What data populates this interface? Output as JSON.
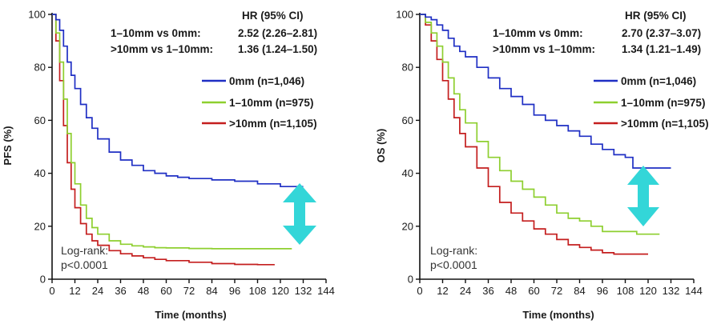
{
  "chart_data": [
    {
      "type": "line",
      "ylabel": "PFS (%)",
      "xlabel": "Time (months)",
      "xlim": [
        0,
        144
      ],
      "ylim": [
        0,
        100
      ],
      "x_ticks": [
        "0",
        "12",
        "24",
        "36",
        "48",
        "60",
        "72",
        "84",
        "96",
        "108",
        "120",
        "132",
        "144"
      ],
      "y_ticks": [
        "0",
        "20",
        "40",
        "60",
        "80",
        "100"
      ],
      "hr_header": "HR (95% CI)",
      "hr_rows": [
        {
          "label": "1–10mm vs 0mm:",
          "value": "2.52 (2.26–2.81)"
        },
        {
          "label": ">10mm vs 1–10mm:",
          "value": "1.36 (1.24–1.50)"
        }
      ],
      "annotation": [
        "Log-rank:",
        "p<0.0001"
      ],
      "series": [
        {
          "name": "0mm (n=1,046)",
          "color": "#1f2fc4",
          "x": [
            0,
            2,
            4,
            6,
            8,
            10,
            12,
            15,
            18,
            21,
            24,
            30,
            36,
            42,
            48,
            54,
            60,
            66,
            72,
            84,
            96,
            108,
            120,
            132
          ],
          "y": [
            100,
            98,
            94,
            88,
            82,
            77,
            72,
            66,
            61,
            57,
            53,
            48,
            45,
            43,
            41,
            40,
            39,
            38.5,
            38,
            37.5,
            37,
            36,
            35,
            35
          ]
        },
        {
          "name": "1–10mm (n=975)",
          "color": "#8ecf2f",
          "x": [
            0,
            2,
            4,
            6,
            8,
            10,
            12,
            15,
            18,
            21,
            24,
            30,
            36,
            42,
            48,
            54,
            60,
            72,
            84,
            96,
            108,
            120,
            126
          ],
          "y": [
            100,
            93,
            82,
            68,
            55,
            44,
            36,
            28,
            23,
            19.5,
            17,
            14.5,
            13.2,
            12.6,
            12.2,
            11.9,
            11.8,
            11.6,
            11.5,
            11.5,
            11.5,
            11.5,
            11.5
          ]
        },
        {
          "name": ">10mm (n=1,105)",
          "color": "#c41e1e",
          "x": [
            0,
            2,
            4,
            6,
            8,
            10,
            12,
            15,
            18,
            21,
            24,
            30,
            36,
            42,
            48,
            54,
            60,
            72,
            84,
            96,
            108,
            117
          ],
          "y": [
            100,
            90,
            75,
            58,
            44,
            34,
            27,
            21,
            17,
            14.5,
            12.8,
            10.8,
            9.6,
            8.8,
            8.1,
            7.5,
            7.0,
            6.4,
            5.9,
            5.6,
            5.5,
            5.5
          ]
        }
      ]
    },
    {
      "type": "line",
      "ylabel": "OS (%)",
      "xlabel": "Time (months)",
      "xlim": [
        0,
        144
      ],
      "ylim": [
        0,
        100
      ],
      "x_ticks": [
        "0",
        "12",
        "24",
        "36",
        "48",
        "60",
        "72",
        "84",
        "96",
        "108",
        "120",
        "132",
        "144"
      ],
      "y_ticks": [
        "0",
        "20",
        "40",
        "60",
        "80",
        "100"
      ],
      "hr_header": "HR (95% CI)",
      "hr_rows": [
        {
          "label": "1–10mm vs 0mm:",
          "value": "2.70 (2.37–3.07)"
        },
        {
          "label": ">10mm vs 1–10mm:",
          "value": "1.34 (1.21–1.49)"
        }
      ],
      "annotation": [
        "Log-rank:",
        "p<0.0001"
      ],
      "series": [
        {
          "name": "0mm (n=1,046)",
          "color": "#1f2fc4",
          "x": [
            0,
            3,
            6,
            9,
            12,
            15,
            18,
            21,
            24,
            30,
            36,
            42,
            48,
            54,
            60,
            66,
            72,
            78,
            84,
            90,
            96,
            102,
            108,
            112,
            120,
            126,
            132
          ],
          "y": [
            100,
            99,
            98,
            96,
            94,
            91,
            88,
            86,
            84,
            80,
            76,
            72,
            69,
            66,
            62,
            60,
            58,
            56,
            54,
            51,
            49,
            47,
            46,
            42,
            42,
            42,
            42
          ]
        },
        {
          "name": "1–10mm (n=975)",
          "color": "#8ecf2f",
          "x": [
            0,
            3,
            6,
            9,
            12,
            15,
            18,
            21,
            24,
            30,
            36,
            42,
            48,
            54,
            60,
            66,
            72,
            78,
            84,
            90,
            96,
            108,
            114,
            120,
            126
          ],
          "y": [
            100,
            97,
            93,
            88,
            82,
            76,
            70,
            64,
            59,
            52,
            46,
            41,
            37,
            34,
            31,
            28,
            25,
            23,
            22,
            20,
            18,
            18,
            17,
            17,
            17
          ]
        },
        {
          "name": ">10mm (n=1,105)",
          "color": "#c41e1e",
          "x": [
            0,
            3,
            6,
            9,
            12,
            15,
            18,
            21,
            24,
            30,
            36,
            42,
            48,
            54,
            60,
            66,
            72,
            78,
            84,
            90,
            96,
            102,
            108,
            114,
            120
          ],
          "y": [
            100,
            96,
            90,
            83,
            75,
            68,
            61,
            55,
            50,
            42,
            35,
            29,
            25,
            22,
            19,
            17,
            15,
            13,
            12,
            11,
            10,
            9.5,
            9.5,
            9.5,
            9.5
          ]
        }
      ]
    }
  ]
}
